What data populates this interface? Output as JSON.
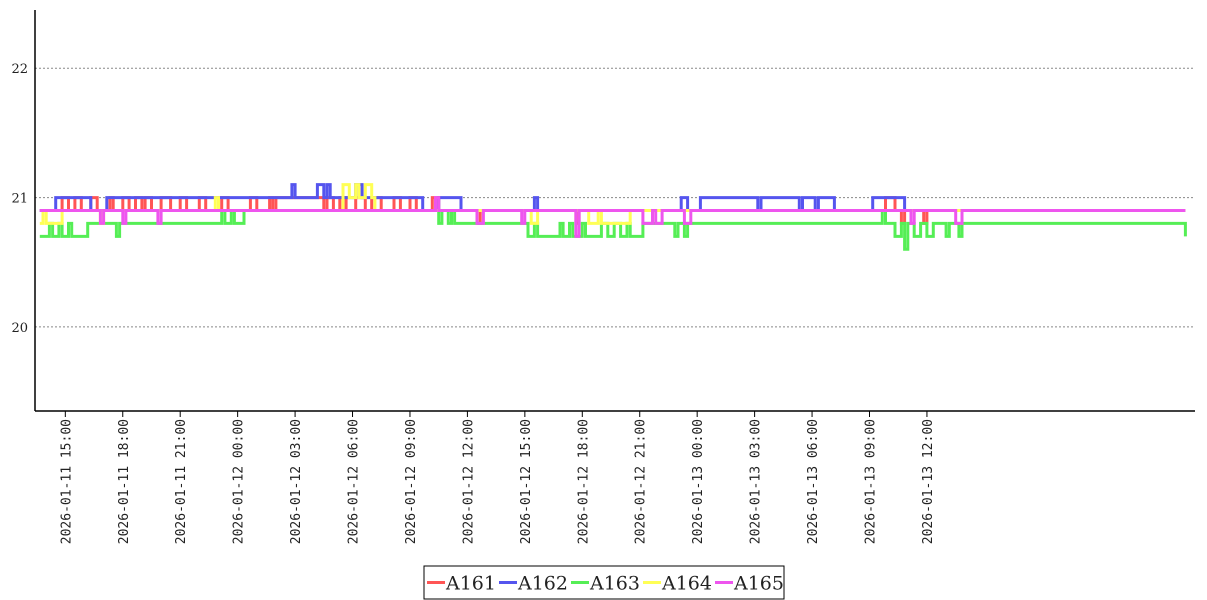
{
  "chart_data": {
    "type": "line",
    "title": "",
    "xlabel": "",
    "ylabel": "",
    "ylim": [
      19.35,
      22.45
    ],
    "yticks": [
      20,
      21,
      22
    ],
    "xlim": [
      "2026-01-11 13:25",
      "2026-01-14 02:00"
    ],
    "xticks": [
      "2026-01-11  15:00",
      "2026-01-11  18:00",
      "2026-01-11  21:00",
      "2026-01-12  00:00",
      "2026-01-12  03:00",
      "2026-01-12  06:00",
      "2026-01-12  09:00",
      "2026-01-12  12:00",
      "2026-01-12  15:00",
      "2026-01-12  18:00",
      "2026-01-12  21:00",
      "2026-01-13  00:00",
      "2026-01-13  03:00",
      "2026-01-13  06:00",
      "2026-01-13  09:00",
      "2026-01-13  12:00"
    ],
    "grid": "horizontal dotted",
    "legend": "bottom-center",
    "series": [
      {
        "name": "A161",
        "color": "#ff5555",
        "points": [
          [
            "2026-01-11 13:40",
            20.9
          ],
          [
            "2026-01-11 14:40",
            20.9
          ],
          [
            "2026-01-11 14:50",
            21.0
          ],
          [
            "2026-01-11 15:10",
            20.9
          ],
          [
            "2026-01-11 15:30",
            21.0
          ],
          [
            "2026-01-11 15:50",
            20.9
          ],
          [
            "2026-01-11 16:20",
            21.0
          ],
          [
            "2026-01-11 16:40",
            20.9
          ],
          [
            "2026-01-11 17:20",
            21.0
          ],
          [
            "2026-01-11 17:30",
            20.9
          ],
          [
            "2026-01-11 18:00",
            21.0
          ],
          [
            "2026-01-11 18:20",
            20.9
          ],
          [
            "2026-01-11 18:40",
            21.0
          ],
          [
            "2026-01-11 19:00",
            20.9
          ],
          [
            "2026-01-11 19:10",
            21.0
          ],
          [
            "2026-01-11 19:30",
            20.9
          ],
          [
            "2026-01-11 20:00",
            21.0
          ],
          [
            "2026-01-11 20:30",
            20.9
          ],
          [
            "2026-01-11 21:00",
            21.0
          ],
          [
            "2026-01-11 21:20",
            20.9
          ],
          [
            "2026-01-11 22:00",
            21.0
          ],
          [
            "2026-01-11 22:20",
            20.9
          ],
          [
            "2026-01-11 23:10",
            21.0
          ],
          [
            "2026-01-11 23:30",
            20.9
          ],
          [
            "2026-01-12 00:40",
            21.0
          ],
          [
            "2026-01-12 01:00",
            20.9
          ],
          [
            "2026-01-12 01:40",
            21.0
          ],
          [
            "2026-01-12 01:50",
            20.9
          ],
          [
            "2026-01-12 02:00",
            21.0
          ],
          [
            "2026-01-12 04:20",
            21.0
          ],
          [
            "2026-01-12 04:30",
            20.9
          ],
          [
            "2026-01-12 04:40",
            21.0
          ],
          [
            "2026-01-12 05:00",
            20.9
          ],
          [
            "2026-01-12 05:20",
            21.0
          ],
          [
            "2026-01-12 05:40",
            20.9
          ],
          [
            "2026-01-12 06:10",
            21.0
          ],
          [
            "2026-01-12 06:40",
            20.9
          ],
          [
            "2026-01-12 07:00",
            21.0
          ],
          [
            "2026-01-12 07:30",
            20.9
          ],
          [
            "2026-01-12 08:10",
            21.0
          ],
          [
            "2026-01-12 08:30",
            20.9
          ],
          [
            "2026-01-12 09:00",
            21.0
          ],
          [
            "2026-01-12 09:20",
            20.9
          ],
          [
            "2026-01-12 10:00",
            20.9
          ],
          [
            "2026-01-12 10:10",
            21.0
          ],
          [
            "2026-01-12 10:30",
            20.9
          ],
          [
            "2026-01-12 12:20",
            20.9
          ],
          [
            "2026-01-12 12:30",
            20.8
          ],
          [
            "2026-01-12 12:40",
            20.9
          ],
          [
            "2026-01-12 17:30",
            20.9
          ],
          [
            "2026-01-12 17:40",
            20.8
          ],
          [
            "2026-01-12 17:50",
            20.9
          ],
          [
            "2026-01-13 09:40",
            20.9
          ],
          [
            "2026-01-13 09:50",
            21.0
          ],
          [
            "2026-01-13 10:20",
            20.9
          ],
          [
            "2026-01-13 10:40",
            20.8
          ],
          [
            "2026-01-13 10:50",
            20.9
          ],
          [
            "2026-01-13 11:40",
            20.9
          ],
          [
            "2026-01-13 11:50",
            20.8
          ],
          [
            "2026-01-13 12:00",
            20.9
          ],
          [
            "2026-01-14 01:30",
            20.9
          ]
        ]
      },
      {
        "name": "A162",
        "color": "#5555ee",
        "points": [
          [
            "2026-01-11 13:40",
            20.9
          ],
          [
            "2026-01-11 14:20",
            20.9
          ],
          [
            "2026-01-11 14:30",
            21.0
          ],
          [
            "2026-01-11 16:10",
            21.0
          ],
          [
            "2026-01-11 16:20",
            20.9
          ],
          [
            "2026-01-11 17:00",
            20.9
          ],
          [
            "2026-01-11 17:10",
            21.0
          ],
          [
            "2026-01-11 23:30",
            21.0
          ],
          [
            "2026-01-12 02:40",
            21.0
          ],
          [
            "2026-01-12 02:50",
            21.1
          ],
          [
            "2026-01-12 03:00",
            21.0
          ],
          [
            "2026-01-12 04:00",
            21.0
          ],
          [
            "2026-01-12 04:10",
            21.1
          ],
          [
            "2026-01-12 04:30",
            21.0
          ],
          [
            "2026-01-12 04:40",
            21.1
          ],
          [
            "2026-01-12 04:50",
            21.0
          ],
          [
            "2026-01-12 06:00",
            21.0
          ],
          [
            "2026-01-12 06:10",
            21.1
          ],
          [
            "2026-01-12 06:30",
            21.0
          ],
          [
            "2026-01-12 08:30",
            21.0
          ],
          [
            "2026-01-12 09:30",
            21.0
          ],
          [
            "2026-01-12 09:40",
            20.9
          ],
          [
            "2026-01-12 10:20",
            20.9
          ],
          [
            "2026-01-12 10:30",
            21.0
          ],
          [
            "2026-01-12 11:30",
            21.0
          ],
          [
            "2026-01-12 11:40",
            20.9
          ],
          [
            "2026-01-12 15:20",
            20.9
          ],
          [
            "2026-01-12 15:30",
            21.0
          ],
          [
            "2026-01-12 15:40",
            20.9
          ],
          [
            "2026-01-12 23:00",
            20.9
          ],
          [
            "2026-01-12 23:10",
            21.0
          ],
          [
            "2026-01-12 23:30",
            20.9
          ],
          [
            "2026-01-13 00:00",
            20.9
          ],
          [
            "2026-01-13 00:10",
            21.0
          ],
          [
            "2026-01-13 03:00",
            21.0
          ],
          [
            "2026-01-13 03:10",
            20.9
          ],
          [
            "2026-01-13 03:20",
            21.0
          ],
          [
            "2026-01-13 05:10",
            21.0
          ],
          [
            "2026-01-13 05:20",
            20.9
          ],
          [
            "2026-01-13 05:30",
            21.0
          ],
          [
            "2026-01-13 06:00",
            21.0
          ],
          [
            "2026-01-13 06:10",
            20.9
          ],
          [
            "2026-01-13 06:20",
            21.0
          ],
          [
            "2026-01-13 07:00",
            21.0
          ],
          [
            "2026-01-13 07:10",
            20.9
          ],
          [
            "2026-01-13 09:00",
            20.9
          ],
          [
            "2026-01-13 09:10",
            21.0
          ],
          [
            "2026-01-13 10:40",
            21.0
          ],
          [
            "2026-01-13 10:50",
            20.9
          ],
          [
            "2026-01-14 01:30",
            20.9
          ]
        ]
      },
      {
        "name": "A163",
        "color": "#55ee55",
        "points": [
          [
            "2026-01-11 13:40",
            20.7
          ],
          [
            "2026-01-11 14:10",
            20.8
          ],
          [
            "2026-01-11 14:20",
            20.7
          ],
          [
            "2026-01-11 14:40",
            20.8
          ],
          [
            "2026-01-11 14:50",
            20.7
          ],
          [
            "2026-01-11 15:10",
            20.8
          ],
          [
            "2026-01-11 15:20",
            20.7
          ],
          [
            "2026-01-11 16:00",
            20.7
          ],
          [
            "2026-01-11 16:10",
            20.8
          ],
          [
            "2026-01-11 17:30",
            20.8
          ],
          [
            "2026-01-11 17:40",
            20.7
          ],
          [
            "2026-01-11 17:50",
            20.8
          ],
          [
            "2026-01-11 23:00",
            20.8
          ],
          [
            "2026-01-11 23:10",
            20.9
          ],
          [
            "2026-01-11 23:20",
            20.8
          ],
          [
            "2026-01-11 23:40",
            20.9
          ],
          [
            "2026-01-11 23:50",
            20.8
          ],
          [
            "2026-01-12 00:20",
            20.9
          ],
          [
            "2026-01-12 10:20",
            20.9
          ],
          [
            "2026-01-12 10:30",
            20.8
          ],
          [
            "2026-01-12 10:40",
            20.9
          ],
          [
            "2026-01-12 11:00",
            20.8
          ],
          [
            "2026-01-12 11:10",
            20.9
          ],
          [
            "2026-01-12 11:20",
            20.8
          ],
          [
            "2026-01-12 15:00",
            20.8
          ],
          [
            "2026-01-12 15:10",
            20.7
          ],
          [
            "2026-01-12 15:30",
            20.8
          ],
          [
            "2026-01-12 15:40",
            20.7
          ],
          [
            "2026-01-12 16:40",
            20.7
          ],
          [
            "2026-01-12 16:50",
            20.8
          ],
          [
            "2026-01-12 17:00",
            20.7
          ],
          [
            "2026-01-12 17:20",
            20.8
          ],
          [
            "2026-01-12 17:30",
            20.7
          ],
          [
            "2026-01-12 18:00",
            20.8
          ],
          [
            "2026-01-12 18:10",
            20.7
          ],
          [
            "2026-01-12 19:00",
            20.8
          ],
          [
            "2026-01-12 19:20",
            20.7
          ],
          [
            "2026-01-12 19:40",
            20.8
          ],
          [
            "2026-01-12 20:00",
            20.7
          ],
          [
            "2026-01-12 20:20",
            20.8
          ],
          [
            "2026-01-12 20:30",
            20.7
          ],
          [
            "2026-01-12 21:10",
            20.8
          ],
          [
            "2026-01-12 22:40",
            20.8
          ],
          [
            "2026-01-12 22:50",
            20.7
          ],
          [
            "2026-01-12 23:00",
            20.8
          ],
          [
            "2026-01-12 23:20",
            20.7
          ],
          [
            "2026-01-12 23:30",
            20.8
          ],
          [
            "2026-01-13 09:30",
            20.8
          ],
          [
            "2026-01-13 09:40",
            20.9
          ],
          [
            "2026-01-13 09:50",
            20.8
          ],
          [
            "2026-01-13 10:20",
            20.7
          ],
          [
            "2026-01-13 10:40",
            20.8
          ],
          [
            "2026-01-13 10:50",
            20.6
          ],
          [
            "2026-01-13 11:00",
            20.8
          ],
          [
            "2026-01-13 11:20",
            20.7
          ],
          [
            "2026-01-13 11:40",
            20.8
          ],
          [
            "2026-01-13 12:00",
            20.7
          ],
          [
            "2026-01-13 12:20",
            20.8
          ],
          [
            "2026-01-13 12:50",
            20.8
          ],
          [
            "2026-01-13 13:00",
            20.7
          ],
          [
            "2026-01-13 13:10",
            20.8
          ],
          [
            "2026-01-13 13:30",
            20.8
          ],
          [
            "2026-01-13 13:40",
            20.7
          ],
          [
            "2026-01-13 13:50",
            20.8
          ],
          [
            "2026-01-14 01:20",
            20.8
          ],
          [
            "2026-01-14 01:30",
            20.7
          ]
        ]
      },
      {
        "name": "A164",
        "color": "#ffff55",
        "points": [
          [
            "2026-01-11 13:40",
            20.8
          ],
          [
            "2026-01-11 13:50",
            20.9
          ],
          [
            "2026-01-11 14:00",
            20.8
          ],
          [
            "2026-01-11 14:40",
            20.8
          ],
          [
            "2026-01-11 14:50",
            20.9
          ],
          [
            "2026-01-11 16:40",
            20.9
          ],
          [
            "2026-01-11 16:50",
            20.8
          ],
          [
            "2026-01-11 17:00",
            20.9
          ],
          [
            "2026-01-11 22:40",
            20.9
          ],
          [
            "2026-01-11 22:50",
            21.0
          ],
          [
            "2026-01-11 23:00",
            20.9
          ],
          [
            "2026-01-12 05:20",
            20.9
          ],
          [
            "2026-01-12 05:30",
            21.1
          ],
          [
            "2026-01-12 05:50",
            21.0
          ],
          [
            "2026-01-12 06:10",
            21.1
          ],
          [
            "2026-01-12 06:20",
            21.0
          ],
          [
            "2026-01-12 06:40",
            21.1
          ],
          [
            "2026-01-12 07:00",
            21.0
          ],
          [
            "2026-01-12 07:10",
            20.9
          ],
          [
            "2026-01-12 12:20",
            20.9
          ],
          [
            "2026-01-12 15:10",
            20.9
          ],
          [
            "2026-01-12 15:20",
            20.8
          ],
          [
            "2026-01-12 15:40",
            20.9
          ],
          [
            "2026-01-12 18:10",
            20.9
          ],
          [
            "2026-01-12 18:20",
            20.8
          ],
          [
            "2026-01-12 18:50",
            20.9
          ],
          [
            "2026-01-12 19:00",
            20.8
          ],
          [
            "2026-01-12 20:20",
            20.8
          ],
          [
            "2026-01-12 20:30",
            20.9
          ],
          [
            "2026-01-14 01:30",
            20.9
          ]
        ]
      },
      {
        "name": "A165",
        "color": "#ee55ee",
        "points": [
          [
            "2026-01-11 13:40",
            20.9
          ],
          [
            "2026-01-11 16:40",
            20.9
          ],
          [
            "2026-01-11 16:50",
            20.8
          ],
          [
            "2026-01-11 17:00",
            20.9
          ],
          [
            "2026-01-11 17:50",
            20.9
          ],
          [
            "2026-01-11 18:00",
            20.8
          ],
          [
            "2026-01-11 18:10",
            20.9
          ],
          [
            "2026-01-11 19:40",
            20.9
          ],
          [
            "2026-01-11 19:50",
            20.8
          ],
          [
            "2026-01-11 20:00",
            20.9
          ],
          [
            "2026-01-12 10:10",
            20.9
          ],
          [
            "2026-01-12 10:20",
            21.0
          ],
          [
            "2026-01-12 10:30",
            20.9
          ],
          [
            "2026-01-12 12:30",
            20.8
          ],
          [
            "2026-01-12 12:50",
            20.9
          ],
          [
            "2026-01-12 14:40",
            20.9
          ],
          [
            "2026-01-12 14:50",
            20.8
          ],
          [
            "2026-01-12 15:00",
            20.9
          ],
          [
            "2026-01-12 17:30",
            20.9
          ],
          [
            "2026-01-12 17:40",
            20.7
          ],
          [
            "2026-01-12 17:50",
            20.9
          ],
          [
            "2026-01-12 21:00",
            20.9
          ],
          [
            "2026-01-12 21:10",
            20.8
          ],
          [
            "2026-01-12 21:40",
            20.9
          ],
          [
            "2026-01-12 21:50",
            20.8
          ],
          [
            "2026-01-12 22:10",
            20.9
          ],
          [
            "2026-01-12 23:10",
            20.9
          ],
          [
            "2026-01-12 23:20",
            20.8
          ],
          [
            "2026-01-12 23:40",
            20.9
          ],
          [
            "2026-01-13 11:00",
            20.9
          ],
          [
            "2026-01-13 11:10",
            20.8
          ],
          [
            "2026-01-13 11:20",
            20.9
          ],
          [
            "2026-01-13 13:20",
            20.9
          ],
          [
            "2026-01-13 13:30",
            20.8
          ],
          [
            "2026-01-13 13:50",
            20.9
          ],
          [
            "2026-01-14 01:30",
            20.9
          ]
        ]
      }
    ]
  }
}
